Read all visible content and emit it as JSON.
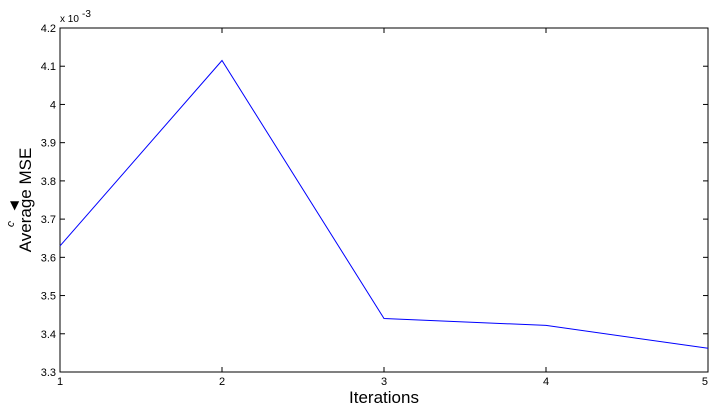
{
  "chart_data": {
    "type": "line",
    "title": "",
    "xlabel": "Iterations",
    "ylabel": "Average MSE",
    "y_exponent_base": "x 10",
    "y_exponent_power": "-3",
    "xlim": [
      1,
      5
    ],
    "ylim": [
      3.3,
      4.2
    ],
    "x_ticks": [
      "1",
      "2",
      "3",
      "4",
      "5"
    ],
    "y_ticks": [
      "3.3",
      "3.4",
      "3.5",
      "3.6",
      "3.7",
      "3.8",
      "3.9",
      "4",
      "4.1",
      "4.2"
    ],
    "grid": false,
    "series": [
      {
        "color": "#0000ff",
        "x": [
          1,
          2,
          3,
          4,
          5
        ],
        "y": [
          3.63,
          4.115,
          3.44,
          3.422,
          3.362
        ]
      }
    ],
    "side_mark": {
      "text": "c",
      "glyph": "▼",
      "icon": "triangle-down-icon"
    }
  }
}
